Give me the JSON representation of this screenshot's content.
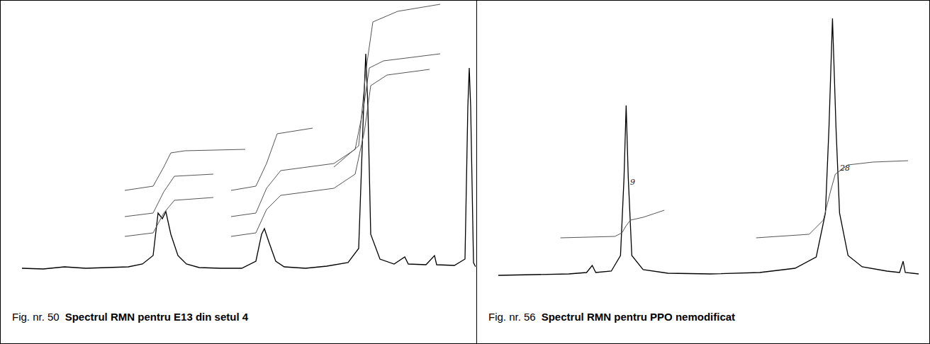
{
  "chart_data": [
    {
      "type": "line",
      "label": "Fig. nr. 50",
      "title": "Spectrul RMN pentru E13 din setul 4",
      "xlim": [
        0,
        670
      ],
      "ylim": [
        0,
        420
      ],
      "tick_labels": false,
      "grid": false,
      "series": [
        {
          "color": "#000000",
          "x": [
            30,
            60,
            90,
            120,
            150,
            180,
            200,
            215,
            222,
            228,
            233,
            240,
            250,
            262,
            280,
            310,
            340,
            360,
            368,
            372,
            378,
            388,
            400,
            430,
            460,
            490,
            505,
            512,
            515,
            518,
            522,
            535,
            555,
            570,
            575,
            600,
            612,
            615,
            640,
            655,
            659,
            661,
            663,
            667,
            670
          ],
          "values": [
            42,
            41,
            44,
            42,
            43,
            44,
            48,
            60,
            120,
            112,
            122,
            90,
            60,
            48,
            43,
            42,
            42,
            52,
            90,
            98,
            80,
            52,
            44,
            42,
            45,
            50,
            70,
            270,
            345,
            270,
            90,
            55,
            48,
            58,
            48,
            47,
            60,
            47,
            46,
            55,
            270,
            325,
            270,
            50,
            44
          ]
        },
        {
          "color": "#555555",
          "x": [
            175,
            215,
            230,
            240,
            260,
            345
          ],
          "values": [
            152,
            158,
            185,
            205,
            208,
            210
          ]
        },
        {
          "color": "#555555",
          "x": [
            175,
            215,
            230,
            245,
            300
          ],
          "values": [
            115,
            120,
            150,
            172,
            175
          ]
        },
        {
          "color": "#555555",
          "x": [
            175,
            215,
            230,
            245,
            300
          ],
          "values": [
            87,
            92,
            120,
            138,
            142
          ]
        },
        {
          "color": "#555555",
          "x": [
            325,
            360,
            375,
            390,
            440
          ],
          "values": [
            152,
            158,
            190,
            232,
            240
          ]
        },
        {
          "color": "#555555",
          "x": [
            325,
            360,
            375,
            395,
            470,
            500,
            512,
            520,
            540,
            620
          ],
          "values": [
            115,
            120,
            155,
            180,
            190,
            210,
            270,
            325,
            335,
            345
          ]
        },
        {
          "color": "#555555",
          "x": [
            325,
            360,
            375,
            395,
            470,
            500,
            513,
            522,
            545,
            605
          ],
          "values": [
            87,
            92,
            125,
            145,
            155,
            175,
            235,
            300,
            315,
            323
          ]
        },
        {
          "color": "#555555",
          "x": [
            470,
            505,
            515,
            525,
            560,
            620
          ],
          "values": [
            185,
            215,
            320,
            390,
            405,
            415
          ]
        }
      ]
    },
    {
      "type": "line",
      "label": "Fig. nr. 56",
      "title": "Spectrul RMN pentru PPO nemodificat",
      "xlim": [
        0,
        640
      ],
      "ylim": [
        0,
        420
      ],
      "tick_labels": false,
      "grid": false,
      "annotations": [
        "9",
        "28"
      ],
      "series": [
        {
          "color": "#000000",
          "x": [
            30,
            80,
            130,
            155,
            163,
            168,
            190,
            203,
            208,
            211,
            214,
            219,
            235,
            270,
            330,
            400,
            450,
            480,
            493,
            498,
            503,
            508,
            513,
            525,
            545,
            580,
            598,
            603,
            606,
            625
          ],
          "values": [
            32,
            33,
            34,
            36,
            46,
            36,
            38,
            60,
            170,
            272,
            170,
            60,
            40,
            35,
            34,
            36,
            42,
            58,
            120,
            240,
            395,
            240,
            120,
            60,
            44,
            38,
            36,
            52,
            36,
            34
          ]
        },
        {
          "color": "#555555",
          "x": [
            118,
            195,
            205,
            211,
            217,
            235,
            265
          ],
          "values": [
            85,
            87,
            92,
            102,
            110,
            114,
            124
          ]
        },
        {
          "color": "#555555",
          "x": [
            395,
            470,
            490,
            500,
            507,
            525,
            560,
            610
          ],
          "values": [
            85,
            90,
            110,
            150,
            175,
            188,
            192,
            194
          ]
        }
      ]
    }
  ]
}
